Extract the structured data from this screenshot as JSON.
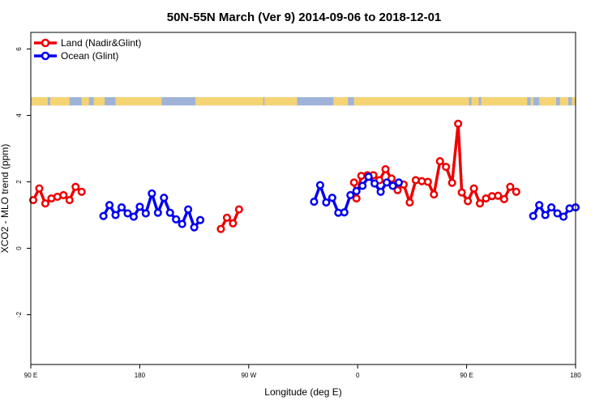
{
  "chart_data": {
    "type": "line",
    "title": "50N-55N March (Ver 9)   2014-09-06 to 2018-12-01",
    "xlabel": "Longitude (deg E)",
    "ylabel": "XCO2 - MLO trend (ppm)",
    "xlim": [
      90,
      540
    ],
    "ylim": [
      -3.5,
      6.5
    ],
    "x_ticks": [
      {
        "value": 90,
        "label": "90 E"
      },
      {
        "value": 180,
        "label": "180"
      },
      {
        "value": 270,
        "label": "90 W"
      },
      {
        "value": 360,
        "label": "0"
      },
      {
        "value": 450,
        "label": "90 E"
      },
      {
        "value": 540,
        "label": "180"
      }
    ],
    "y_ticks": [
      {
        "value": -2,
        "label": "-2"
      },
      {
        "value": 0,
        "label": "0"
      },
      {
        "value": 2,
        "label": "2"
      },
      {
        "value": 4,
        "label": "4"
      },
      {
        "value": 6,
        "label": "6"
      }
    ],
    "legend_position": "top-left",
    "series": [
      {
        "name": "Land (Nadir&Glint)",
        "color": "#ee0000",
        "segments": [
          [
            [
              92,
              1.45
            ],
            [
              97,
              1.8
            ],
            [
              102,
              1.35
            ],
            [
              107,
              1.5
            ],
            [
              112,
              1.55
            ],
            [
              117,
              1.6
            ],
            [
              122,
              1.45
            ],
            [
              127,
              1.85
            ],
            [
              132,
              1.7
            ]
          ],
          [
            [
              247,
              0.58
            ],
            [
              252,
              0.92
            ],
            [
              257,
              0.75
            ],
            [
              262,
              1.17
            ]
          ],
          [
            [
              357,
              1.98
            ],
            [
              359,
              1.5
            ],
            [
              363,
              2.18
            ],
            [
              368,
              2.2
            ],
            [
              373,
              2.2
            ],
            [
              378,
              2.05
            ],
            [
              383,
              2.38
            ],
            [
              388,
              2.1
            ],
            [
              393,
              1.75
            ],
            [
              398,
              1.92
            ],
            [
              403,
              1.38
            ],
            [
              408,
              2.05
            ],
            [
              413,
              2.02
            ],
            [
              418,
              2.0
            ],
            [
              423,
              1.62
            ],
            [
              428,
              2.62
            ],
            [
              433,
              2.45
            ],
            [
              438,
              1.97
            ],
            [
              443,
              3.75
            ],
            [
              446,
              1.68
            ],
            [
              451,
              1.42
            ],
            [
              456,
              1.8
            ],
            [
              461,
              1.35
            ],
            [
              466,
              1.5
            ],
            [
              471,
              1.57
            ],
            [
              476,
              1.58
            ],
            [
              481,
              1.48
            ],
            [
              486,
              1.85
            ],
            [
              491,
              1.7
            ]
          ]
        ]
      },
      {
        "name": "Ocean (Glint)",
        "color": "#0000ee",
        "segments": [
          [
            [
              150,
              0.97
            ],
            [
              155,
              1.3
            ],
            [
              160,
              1.0
            ],
            [
              165,
              1.23
            ],
            [
              170,
              1.05
            ],
            [
              175,
              0.95
            ],
            [
              180,
              1.25
            ],
            [
              185,
              1.05
            ],
            [
              190,
              1.65
            ],
            [
              195,
              1.07
            ],
            [
              200,
              1.52
            ],
            [
              205,
              1.07
            ],
            [
              210,
              0.87
            ],
            [
              215,
              0.73
            ],
            [
              220,
              1.17
            ],
            [
              225,
              0.63
            ],
            [
              230,
              0.85
            ]
          ],
          [
            [
              324,
              1.4
            ],
            [
              329,
              1.9
            ],
            [
              334,
              1.38
            ],
            [
              339,
              1.52
            ],
            [
              344,
              1.07
            ],
            [
              349,
              1.08
            ],
            [
              354,
              1.6
            ],
            [
              359,
              1.72
            ],
            [
              364,
              1.88
            ],
            [
              369,
              2.15
            ],
            [
              374,
              1.95
            ],
            [
              379,
              1.7
            ],
            [
              384,
              1.98
            ],
            [
              389,
              1.88
            ],
            [
              394,
              1.98
            ]
          ],
          [
            [
              505,
              0.97
            ],
            [
              510,
              1.3
            ],
            [
              515,
              1.0
            ],
            [
              520,
              1.23
            ],
            [
              525,
              1.05
            ],
            [
              530,
              0.95
            ],
            [
              535,
              1.2
            ],
            [
              540,
              1.23
            ]
          ]
        ]
      }
    ],
    "land_ocean_band": {
      "y_range": [
        4.3,
        4.55
      ],
      "land_color": "#f5d474",
      "ocean_color": "#9fb3d9"
    }
  }
}
